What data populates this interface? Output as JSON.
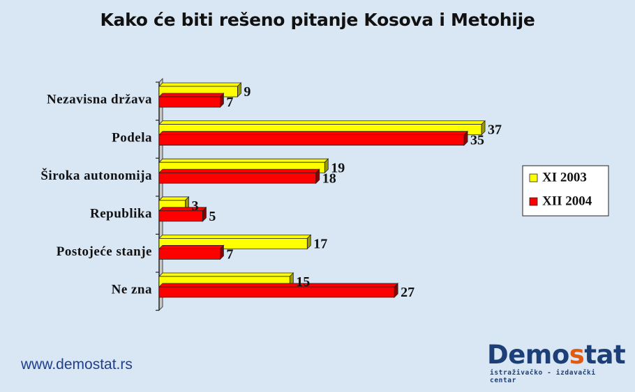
{
  "title": "Kako će biti rešeno pitanje Kosova i Metohije",
  "footer": {
    "url": "www.demostat.rs",
    "logo": {
      "pre": "Demo",
      "highlight": "s",
      "post": "tat",
      "tagline": "istraživačko - izdavački centar"
    }
  },
  "colors": {
    "series1": "#ffff00",
    "series2": "#ff0000",
    "background": "#d9e6f4",
    "brand": "#1c3f78",
    "brand_accent": "#e05a10"
  },
  "chart_data": {
    "type": "bar",
    "orientation": "horizontal",
    "title": "Kako će biti rešeno pitanje Kosova i Metohije",
    "categories": [
      "Nezavisna država",
      "Podela",
      "Široka autonomija",
      "Republika",
      "Postojeće stanje",
      "Ne zna"
    ],
    "series": [
      {
        "name": "XI 2003",
        "values": [
          9,
          37,
          19,
          3,
          17,
          15
        ]
      },
      {
        "name": "XII 2004",
        "values": [
          7,
          35,
          18,
          5,
          7,
          27
        ]
      }
    ],
    "xlim": [
      0,
      37
    ],
    "grid": false,
    "legend": "right"
  }
}
